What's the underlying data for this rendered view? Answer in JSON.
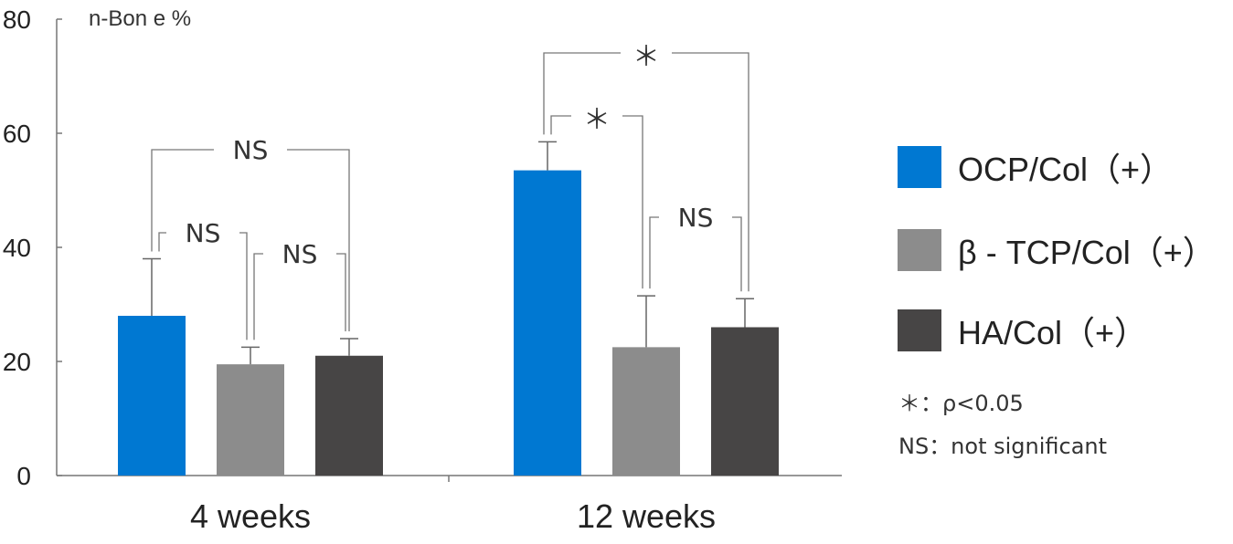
{
  "chart_data": {
    "type": "bar",
    "ylabel": "n-Bon e %",
    "ylim": [
      0,
      80
    ],
    "yticks": [
      0,
      20,
      40,
      60,
      80
    ],
    "categories": [
      "4 weeks",
      "12 weeks"
    ],
    "series": [
      {
        "name": "OCP/Col（+）",
        "color": "#0078D2",
        "values": [
          28,
          53.5
        ],
        "error": [
          10,
          5
        ]
      },
      {
        "name": "β - TCP/Col（+）",
        "color": "#8C8C8C",
        "values": [
          19.5,
          22.5
        ],
        "error": [
          3,
          9
        ]
      },
      {
        "name": "HA/Col（+）",
        "color": "#474545",
        "values": [
          21,
          26
        ],
        "error": [
          3,
          5
        ]
      }
    ],
    "annotations": [
      {
        "group": 0,
        "from": 0,
        "to": 2,
        "label": "NS"
      },
      {
        "group": 0,
        "from": 0,
        "to": 1,
        "label": "NS"
      },
      {
        "group": 0,
        "from": 1,
        "to": 2,
        "label": "NS"
      },
      {
        "group": 1,
        "from": 0,
        "to": 2,
        "label": "＊"
      },
      {
        "group": 1,
        "from": 0,
        "to": 1,
        "label": "＊"
      },
      {
        "group": 1,
        "from": 1,
        "to": 2,
        "label": "NS"
      }
    ]
  },
  "legend": {
    "items": [
      {
        "label": "OCP/Col（+）",
        "color": "#0078D2"
      },
      {
        "label": "β - TCP/Col（+）",
        "color": "#8C8C8C"
      },
      {
        "label": "HA/Col（+）",
        "color": "#474545"
      }
    ]
  },
  "notes": {
    "significance": "＊：ρ<0.05",
    "ns": "NS：not significant"
  }
}
